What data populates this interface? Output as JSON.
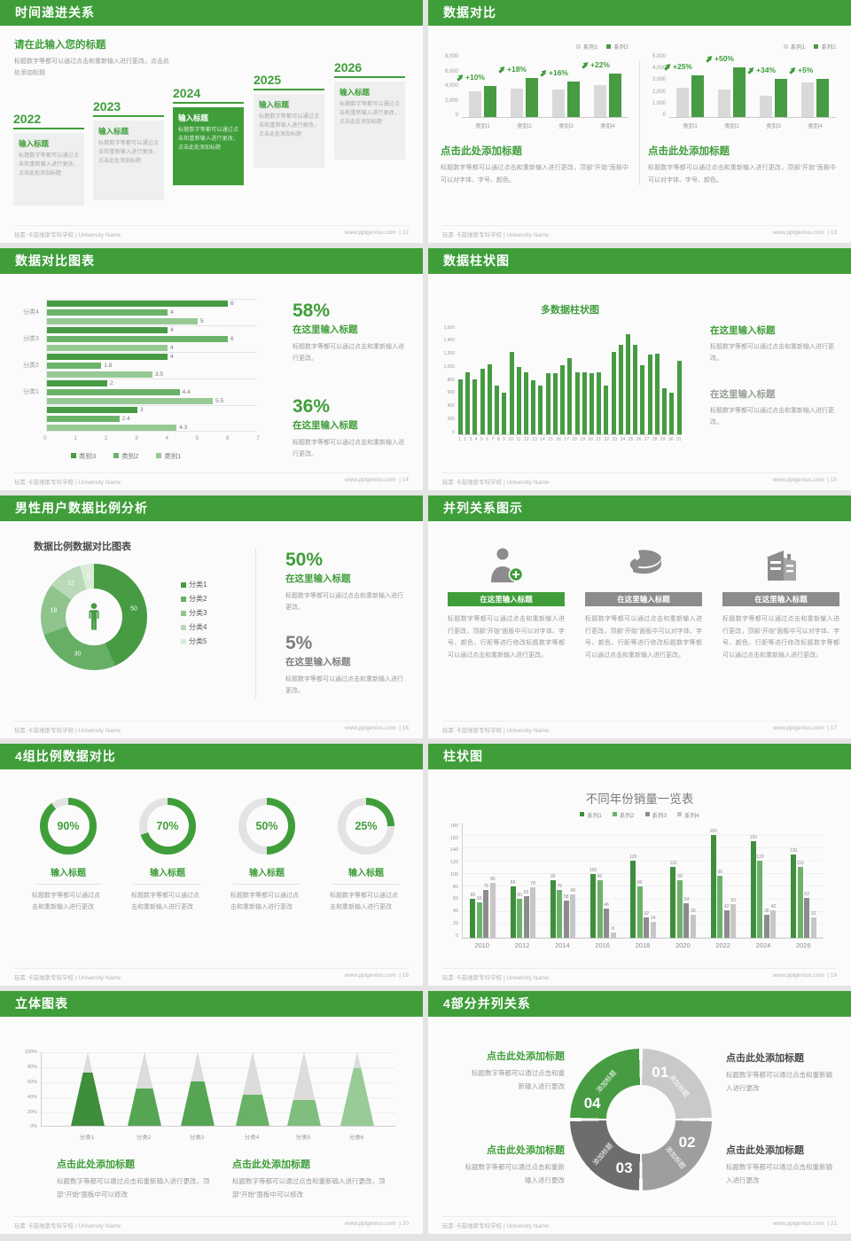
{
  "colors": {
    "accent": "#3f9e3a",
    "bar_green": "#469b43",
    "green2": "#6bb369",
    "green3": "#97c995",
    "green4": "#bcdabb",
    "green5": "#d9ecd8",
    "gray_bar": "#d9d9d9",
    "dark_gray": "#8c8c8c",
    "mid_gray": "#9e9e9e",
    "deep_gray": "#6d6d6d",
    "light_gray": "#c9c9c9"
  },
  "footer": {
    "school": "玩素·卡兹维斯专科学校 | University Name",
    "site": "www.pptgenius.com"
  },
  "slides": [
    {
      "title": "时间递进关系",
      "page_label": "| 12",
      "intro": {
        "title": "请在此输入您的标题",
        "body": "标题数字等都可以通过点击和重新输入进行更改，点击此处添加标题"
      },
      "milestones": [
        {
          "year": "2022",
          "title": "输入标题",
          "body": "标题数字等都可以通过点击和重新输入进行更改，点击此处添加标题",
          "highlight": false
        },
        {
          "year": "2023",
          "title": "输入标题",
          "body": "标题数字等都可以通过点击和重新输入进行更改，点击此处添加标题",
          "highlight": false
        },
        {
          "year": "2024",
          "title": "输入标题",
          "body": "标题数字等都可以通过点击和重新输入进行更改，点击此处添加标题",
          "highlight": true
        },
        {
          "year": "2025",
          "title": "输入标题",
          "body": "标题数字等都可以通过点击和重新输入进行更改，点击此处添加标题",
          "highlight": false
        },
        {
          "year": "2026",
          "title": "输入标题",
          "body": "标题数字等都可以通过点击和重新输入进行更改，点击此处添加标题",
          "highlight": false
        }
      ]
    },
    {
      "title": "数据对比",
      "page_label": "| 13",
      "panels": [
        {
          "chart": 0,
          "heading": "点击此处添加标题",
          "body": "标题数字等都可以通过点击和重新输入进行更改，顶部“开始”面板中可以对字体、字号、颜色。"
        },
        {
          "chart": 1,
          "heading": "点击此处添加标题",
          "body": "标题数字等都可以通过点击和重新输入进行更改，顶部“开始”面板中可以对字体、字号、颜色。"
        }
      ]
    },
    {
      "title": "数据对比图表",
      "page_label": "| 14",
      "chart": 2,
      "stats": [
        {
          "pct": "58%",
          "head": "在这里输入标题",
          "body": "标题数字等都可以通过点击和重新输入进行更改。",
          "green": true
        },
        {
          "pct": "36%",
          "head": "在这里输入标题",
          "body": "标题数字等都可以通过点击和重新输入进行更改。",
          "green": true
        }
      ]
    },
    {
      "title": "数据柱状图",
      "page_label": "| 15",
      "chart": 3,
      "blocks": [
        {
          "head": "在这里输入标题",
          "body": "标题数字等都可以通过点击和重新输入进行更改。",
          "green": true
        },
        {
          "head": "在这里输入标题",
          "body": "标题数字等都可以通过点击和重新输入进行更改。",
          "green": false
        }
      ]
    },
    {
      "title": "男性用户数据比例分析",
      "page_label": "| 16",
      "chart": 4,
      "stats": [
        {
          "pct": "50%",
          "head": "在这里输入标题",
          "body": "标题数字等都可以通过点击和重新输入进行更改。",
          "green": true
        },
        {
          "pct": "5%",
          "head": "在这里输入标题",
          "body": "标题数字等都可以通过点击和重新输入进行更改。",
          "green": false
        }
      ]
    },
    {
      "title": "并列关系图示",
      "page_label": "| 17",
      "columns": [
        {
          "icon": "person-add-icon",
          "head": "在这里输入标题",
          "accent": true,
          "body": "标题数字等都可以通过点击和重新输入进行更改，顶部“开始”面板中可以对字体、字号、颜色、行距等进行修改标题数字等都可以通过点击和重新输入进行更改。"
        },
        {
          "icon": "pie-3d-icon",
          "head": "在这里输入标题",
          "accent": false,
          "body": "标题数字等都可以通过点击和重新输入进行更改，顶部“开始”面板中可以对字体、字号、颜色、行距等进行修改标题数字等都可以通过点击和重新输入进行更改。"
        },
        {
          "icon": "building-icon",
          "head": "在这里输入标题",
          "accent": false,
          "body": "标题数字等都可以通过点击和重新输入进行更改，顶部“开始”面板中可以对字体、字号、颜色、行距等进行修改标题数字等都可以通过点击和重新输入进行更改。"
        }
      ]
    },
    {
      "title": "4组比例数据对比",
      "page_label": "| 18",
      "gauges": [
        {
          "pct": 90,
          "label": "90%",
          "head": "输入标题",
          "body": "标题数字等都可以通过点击和重新输入进行更改"
        },
        {
          "pct": 70,
          "label": "70%",
          "head": "输入标题",
          "body": "标题数字等都可以通过点击和重新输入进行更改"
        },
        {
          "pct": 50,
          "label": "50%",
          "head": "输入标题",
          "body": "标题数字等都可以通过点击和重新输入进行更改"
        },
        {
          "pct": 25,
          "label": "25%",
          "head": "输入标题",
          "body": "标题数字等都可以通过点击和重新输入进行更改"
        }
      ]
    },
    {
      "title": "柱状图",
      "page_label": "| 19",
      "chart": 5
    },
    {
      "title": "立体图表",
      "page_label": "| 20",
      "chart": 6,
      "blocks": [
        {
          "head": "点击此处添加标题",
          "body": "标题数字等都可以通过点击和重新输入进行更改，顶部“开始”面板中可以修改"
        },
        {
          "head": "点击此处添加标题",
          "body": "标题数字等都可以通过点击和重新输入进行更改，顶部“开始”面板中可以修改"
        }
      ]
    },
    {
      "title": "4部分并列关系",
      "page_label": "| 21",
      "segments": [
        {
          "num": "01",
          "label": "添加标题"
        },
        {
          "num": "02",
          "label": "添加标题"
        },
        {
          "num": "03",
          "label": "添加标题"
        },
        {
          "num": "04",
          "label": "添加标题"
        }
      ],
      "callouts": [
        {
          "pos": "tl",
          "green": true,
          "head": "点击此处添加标题",
          "body": "标题数字等都可以通过点击和重新输入进行更改"
        },
        {
          "pos": "tr",
          "green": false,
          "head": "点击此处添加标题",
          "body": "标题数字等都可以通过点击和重新输入进行更改"
        },
        {
          "pos": "bl",
          "green": true,
          "head": "点击此处添加标题",
          "body": "标题数字等都可以通过点击和重新输入进行更改"
        },
        {
          "pos": "br",
          "green": false,
          "head": "点击此处添加标题",
          "body": "标题数字等都可以通过点击和重新输入进行更改"
        }
      ]
    }
  ],
  "chart_data": [
    {
      "type": "bar",
      "id": "compare-left",
      "legend": [
        "系列1",
        "系列2"
      ],
      "categories": [
        "类别1",
        "类别2",
        "类别3",
        "类别4"
      ],
      "series": [
        {
          "name": "系列1",
          "values": [
            3500,
            3800,
            3700,
            4300
          ]
        },
        {
          "name": "系列2",
          "values": [
            4200,
            5300,
            4800,
            5800
          ]
        }
      ],
      "growth_labels": [
        "+10%",
        "+18%",
        "+16%",
        "+22%"
      ],
      "ylim": [
        0,
        8000
      ],
      "yticks": [
        "8,000",
        "6,000",
        "4,000",
        "2,000",
        "0"
      ],
      "grid": false,
      "legend_position": "top-right"
    },
    {
      "type": "bar",
      "id": "compare-right",
      "legend": [
        "系列1",
        "系列2"
      ],
      "categories": [
        "类别1",
        "类别2",
        "类别3",
        "类别4"
      ],
      "series": [
        {
          "name": "系列1",
          "values": [
            2500,
            2300,
            1800,
            2900
          ]
        },
        {
          "name": "系列2",
          "values": [
            3500,
            4200,
            3200,
            3200
          ]
        }
      ],
      "growth_labels": [
        "+25%",
        "+50%",
        "+34%",
        "+5%"
      ],
      "ylim": [
        0,
        5000
      ],
      "yticks": [
        "5,000",
        "4,000",
        "3,000",
        "2,000",
        "1,000",
        "0"
      ],
      "grid": false,
      "legend_position": "top-right"
    },
    {
      "type": "bar-horizontal",
      "id": "group-hbar",
      "groups": [
        "分类4",
        "分类3",
        "分类2",
        "分类1",
        ""
      ],
      "series": [
        {
          "name": "类别3",
          "values": [
            6,
            4,
            4,
            2,
            3
          ]
        },
        {
          "name": "类别2",
          "values": [
            4,
            6,
            1.8,
            4.4,
            2.4
          ]
        },
        {
          "name": "类别1",
          "values": [
            5,
            4,
            3.5,
            5.5,
            4.3
          ]
        }
      ],
      "xlim": [
        0,
        7
      ],
      "xticks": [
        "0",
        "1",
        "2",
        "3",
        "4",
        "5",
        "6",
        "7"
      ],
      "legend_position": "bottom"
    },
    {
      "type": "bar",
      "id": "multi-bar",
      "title": "多数据柱状图",
      "x": [
        "1",
        "2",
        "3",
        "4",
        "5",
        "6",
        "7",
        "8",
        "9",
        "10",
        "11",
        "12",
        "13",
        "14",
        "15",
        "16",
        "17",
        "18",
        "19",
        "20",
        "21",
        "22",
        "23",
        "24",
        "25",
        "26",
        "27",
        "28",
        "29",
        "30",
        "31"
      ],
      "values": [
        800,
        900,
        800,
        950,
        1020,
        700,
        600,
        1200,
        980,
        900,
        780,
        700,
        890,
        890,
        1000,
        1100,
        900,
        900,
        880,
        900,
        700,
        1200,
        1300,
        1450,
        1300,
        1000,
        1160,
        1170,
        670,
        600,
        1070
      ],
      "ylim": [
        0,
        1600
      ],
      "yticks": [
        "1,600",
        "1,400",
        "1,200",
        "1,000",
        "800",
        "600",
        "400",
        "200",
        "0"
      ],
      "grid": false
    },
    {
      "type": "donut",
      "id": "ratio-donut",
      "title": "数据比例数据对比图表",
      "labels": [
        "分类1",
        "分类2",
        "分类3",
        "分类4",
        "分类5"
      ],
      "values": [
        50,
        30,
        18,
        12,
        5
      ],
      "legend_position": "right"
    },
    {
      "type": "bar",
      "id": "sales-by-year",
      "title": "不同年份销量一览表",
      "categories": [
        "2010",
        "2012",
        "2014",
        "2016",
        "2018",
        "2020",
        "2022",
        "2024",
        "2026"
      ],
      "series": [
        {
          "name": "系列1",
          "values": [
            60,
            80,
            90,
            100,
            120,
            110,
            160,
            150,
            130
          ]
        },
        {
          "name": "系列2",
          "values": [
            55,
            60,
            75,
            90,
            80,
            90,
            96,
            120,
            110
          ]
        },
        {
          "name": "系列3",
          "values": [
            75,
            65,
            58,
            46,
            32,
            54,
            42,
            36,
            62
          ]
        },
        {
          "name": "系列4",
          "values": [
            85,
            78,
            68,
            8,
            24,
            36,
            53,
            42,
            32
          ]
        }
      ],
      "ylim": [
        0,
        180
      ],
      "yticks": [
        "180",
        "160",
        "140",
        "120",
        "100",
        "80",
        "60",
        "40",
        "20",
        "0"
      ],
      "grid": true,
      "legend_position": "top"
    },
    {
      "type": "cone",
      "id": "cone-chart",
      "categories": [
        "分类1",
        "分类2",
        "分类3",
        "分类4",
        "分类5",
        "分类6"
      ],
      "values": [
        72,
        50,
        60,
        42,
        35,
        78
      ],
      "yticks": [
        "100%",
        "80%",
        "60%",
        "40%",
        "20%",
        "0%"
      ],
      "ylim": [
        0,
        100
      ],
      "grid": true
    }
  ]
}
